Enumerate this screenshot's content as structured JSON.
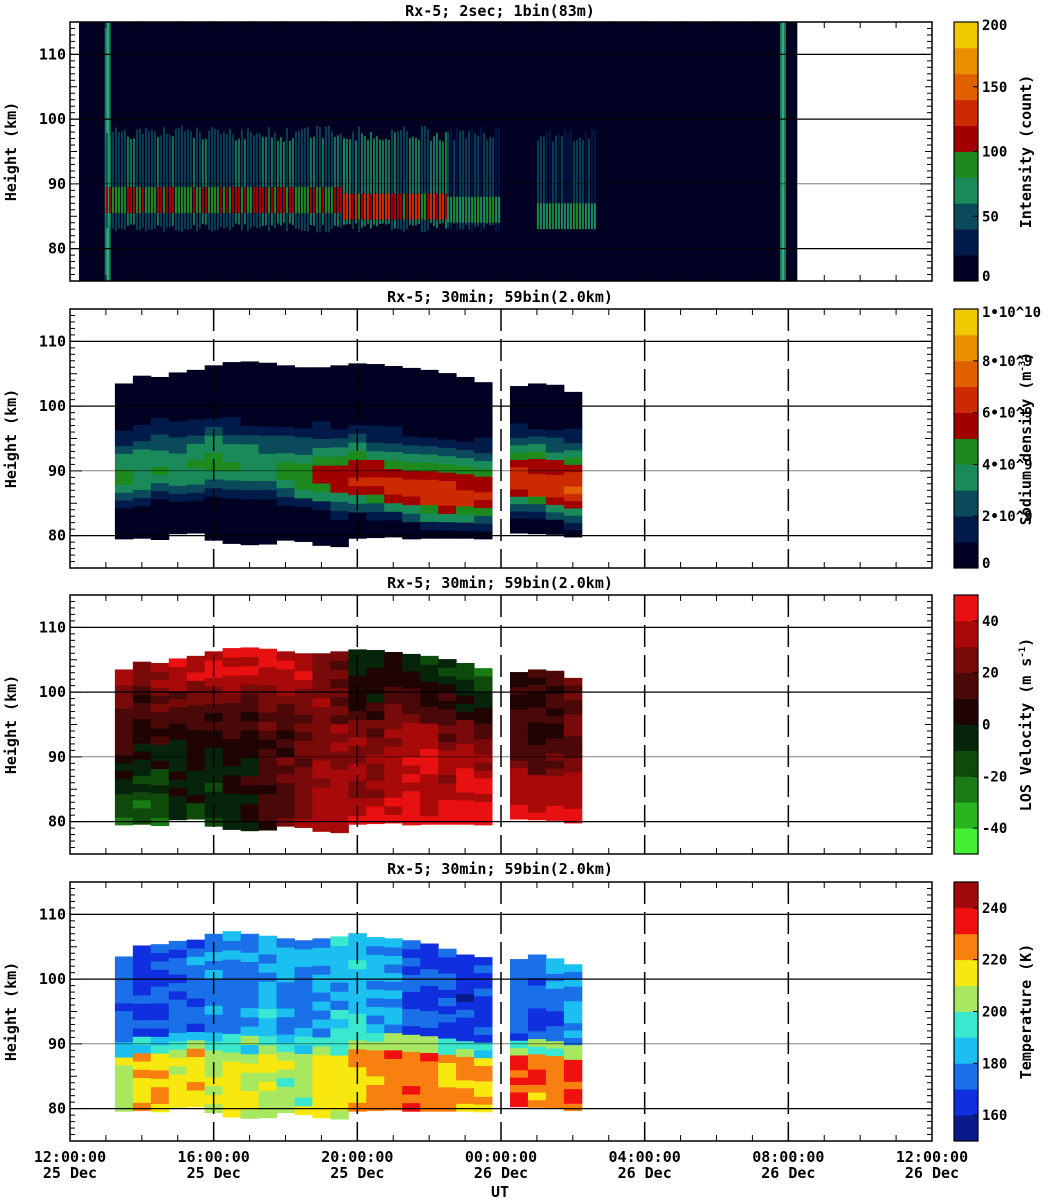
{
  "figure": {
    "xlabel": "UT",
    "xticks": [
      {
        "time": "12:00:00",
        "date": "25 Dec"
      },
      {
        "time": "16:00:00",
        "date": "25 Dec"
      },
      {
        "time": "20:00:00",
        "date": "25 Dec"
      },
      {
        "time": "00:00:00",
        "date": "26 Dec"
      },
      {
        "time": "04:00:00",
        "date": "26 Dec"
      },
      {
        "time": "08:00:00",
        "date": "26 Dec"
      },
      {
        "time": "12:00:00",
        "date": "26 Dec"
      }
    ]
  },
  "chart_data": [
    {
      "type": "heatmap",
      "title": "Rx-5;  2sec; 1bin(83m)",
      "ylabel": "Height (km)",
      "yticks": [
        "80",
        "90",
        "100",
        "110"
      ],
      "ylim": [
        75,
        115
      ],
      "xlim_hours": [
        12,
        36
      ],
      "colorbar_label": "Intensity (count)",
      "colorbar_ticks": [
        "0",
        "50",
        "100",
        "150",
        "200"
      ],
      "colorbar_range": [
        0,
        200
      ],
      "colors": [
        "#000022",
        "#001a4a",
        "#0a4a5a",
        "#1a8a5a",
        "#1e8a1e",
        "#a00000",
        "#cc2a00",
        "#e06000",
        "#e89000",
        "#f0c800"
      ],
      "data_span_hours": [
        12.25,
        32.25
      ],
      "segments": [
        {
          "start": 13.0,
          "end": 19.6,
          "core_km": 87.5,
          "peak": 120
        },
        {
          "start": 19.6,
          "end": 22.5,
          "core_km": 86.5,
          "peak": 135
        },
        {
          "start": 22.5,
          "end": 24.0,
          "core_km": 86,
          "peak": 95
        },
        {
          "start": 25.0,
          "end": 26.6,
          "core_km": 85,
          "peak": 85
        },
        {
          "start": 27.0,
          "end": 31.3,
          "core_km": 88,
          "peak": 20
        }
      ]
    },
    {
      "type": "heatmap",
      "title": "Rx-5; 30min; 59bin(2.0km)",
      "ylabel": "Height (km)",
      "yticks": [
        "80",
        "90",
        "100",
        "110"
      ],
      "ylim": [
        75,
        115
      ],
      "colorbar_label": "Sodium density (m^-3)",
      "colorbar_ticks": [
        "0",
        "2•10^9",
        "4•10^9",
        "6•10^9",
        "8•10^9",
        "1•10^10"
      ],
      "colorbar_range": [
        0,
        10000000000
      ],
      "colors": [
        "#000022",
        "#001a4a",
        "#0a4a5a",
        "#1a8a5a",
        "#1e8a1e",
        "#a00000",
        "#cc2a00",
        "#e06000",
        "#e89000",
        "#f0c800"
      ],
      "x_hours": [
        13.5,
        14.0,
        14.5,
        15.0,
        15.5,
        16.0,
        16.5,
        17.0,
        17.5,
        18.0,
        18.5,
        19.0,
        19.5,
        20.0,
        20.5,
        21.0,
        21.5,
        22.0,
        22.5,
        23.0,
        23.5,
        24.5,
        25.0,
        25.5,
        26.0
      ],
      "layer_top_km": [
        103.5,
        104.7,
        104.5,
        105.2,
        105.6,
        106.3,
        106.8,
        106.9,
        106.7,
        106.3,
        106.0,
        106.0,
        106.3,
        106.6,
        106.5,
        106.2,
        105.9,
        105.6,
        105.1,
        104.5,
        103.7,
        103.1,
        103.5,
        103.3,
        102.2
      ],
      "layer_bottom_km": [
        79.5,
        79.6,
        79.4,
        80.3,
        80.4,
        79.3,
        78.8,
        78.6,
        78.7,
        79.3,
        79.1,
        78.5,
        78.3,
        79.6,
        79.7,
        79.8,
        79.5,
        79.6,
        79.6,
        79.6,
        79.5,
        80.4,
        80.3,
        80.2,
        79.8
      ],
      "peak_km": [
        88.5,
        89.5,
        90.0,
        90.0,
        90.5,
        91.0,
        90.5,
        90.0,
        90.0,
        89.5,
        89.0,
        89.0,
        88.5,
        88.5,
        88.0,
        87.5,
        87.0,
        86.5,
        86.0,
        86.0,
        86.0,
        88.5,
        88.0,
        87.5,
        87.0
      ],
      "peak_density": [
        4200000000,
        4000000000,
        4100000000,
        3900000000,
        4100000000,
        4300000000,
        4200000000,
        4000000000,
        3900000000,
        4200000000,
        4500000000,
        5200000000,
        5800000000,
        6100000000,
        6300000000,
        6500000000,
        6700000000,
        7000000000,
        6900000000,
        6400000000,
        6100000000,
        6600000000,
        6700000000,
        6900000000,
        7200000000
      ]
    },
    {
      "type": "heatmap",
      "title": "Rx-5; 30min; 59bin(2.0km)",
      "ylabel": "Height (km)",
      "yticks": [
        "80",
        "90",
        "100",
        "110"
      ],
      "ylim": [
        75,
        115
      ],
      "colorbar_label": "LOS Velocity (m s^-1)",
      "colorbar_ticks": [
        "-40",
        "-20",
        "0",
        "20",
        "40"
      ],
      "colorbar_range": [
        -50,
        50
      ],
      "colors": [
        "#44ee33",
        "#29b420",
        "#1a7a14",
        "#0e4a0a",
        "#06240a",
        "#200404",
        "#4a0808",
        "#780a0a",
        "#a80a0a",
        "#e81010"
      ],
      "x_hours": [
        13.5,
        14.0,
        14.5,
        15.0,
        15.5,
        16.0,
        16.5,
        17.0,
        17.5,
        18.0,
        18.5,
        19.0,
        19.5,
        20.0,
        20.5,
        21.0,
        21.5,
        22.0,
        22.5,
        23.0,
        23.5,
        24.5,
        25.0,
        25.5,
        26.0
      ],
      "upper_velocity": [
        30,
        24,
        34,
        44,
        42,
        46,
        48,
        48,
        47,
        45,
        40,
        32,
        18,
        -12,
        -14,
        -8,
        -4,
        -16,
        -10,
        -22,
        -28,
        2,
        8,
        12,
        20
      ],
      "mid_velocity": [
        8,
        4,
        2,
        0,
        10,
        2,
        6,
        4,
        10,
        14,
        20,
        24,
        28,
        26,
        22,
        30,
        38,
        36,
        24,
        28,
        26,
        16,
        10,
        14,
        18
      ],
      "lower_velocity": [
        -16,
        -22,
        -20,
        -6,
        -10,
        -14,
        -8,
        4,
        12,
        20,
        30,
        36,
        38,
        38,
        40,
        44,
        46,
        42,
        44,
        46,
        48,
        48,
        48,
        46,
        48
      ]
    },
    {
      "type": "heatmap",
      "title": "Rx-5; 30min; 59bin(2.0km)",
      "ylabel": "Height (km)",
      "yticks": [
        "80",
        "90",
        "100",
        "110"
      ],
      "ylim": [
        75,
        115
      ],
      "colorbar_label": "Temperature (K)",
      "colorbar_ticks": [
        "160",
        "180",
        "200",
        "220",
        "240"
      ],
      "colorbar_range": [
        150,
        250
      ],
      "colors": [
        "#0a1a8a",
        "#1030e0",
        "#1a70e8",
        "#1cc0f0",
        "#3ae8d0",
        "#a8e860",
        "#f8e810",
        "#f88010",
        "#f01010",
        "#a00a0a"
      ],
      "x_hours": [
        13.5,
        14.0,
        14.5,
        15.0,
        15.5,
        16.0,
        16.5,
        17.0,
        17.5,
        18.0,
        18.5,
        19.0,
        19.5,
        20.0,
        20.5,
        21.0,
        21.5,
        22.0,
        22.5,
        23.0,
        23.5,
        24.5,
        25.0,
        25.5,
        26.0
      ],
      "layer_top_km": [
        103.5,
        105.2,
        105.4,
        105.9,
        106.1,
        107.0,
        107.4,
        107.0,
        106.7,
        106.3,
        106.0,
        106.3,
        106.6,
        107.1,
        106.5,
        106.3,
        106.0,
        105.5,
        104.7,
        103.8,
        103.4,
        103.1,
        103.8,
        103.2,
        102.3
      ],
      "layer_bottom_km": [
        79.6,
        79.7,
        79.5,
        80.2,
        80.3,
        79.4,
        78.7,
        78.5,
        78.6,
        79.4,
        79.1,
        78.6,
        78.4,
        79.6,
        79.7,
        79.8,
        79.6,
        79.6,
        79.6,
        79.6,
        79.5,
        80.3,
        80.2,
        80.1,
        79.7
      ],
      "upper_temperature": [
        172,
        168,
        166,
        170,
        174,
        178,
        176,
        180,
        184,
        180,
        178,
        182,
        186,
        188,
        180,
        176,
        172,
        168,
        170,
        166,
        168,
        170,
        172,
        176,
        180
      ],
      "lower_temperature": [
        210,
        216,
        222,
        214,
        218,
        208,
        212,
        210,
        208,
        206,
        204,
        210,
        212,
        220,
        224,
        226,
        228,
        226,
        220,
        222,
        216,
        230,
        226,
        228,
        232
      ]
    }
  ]
}
